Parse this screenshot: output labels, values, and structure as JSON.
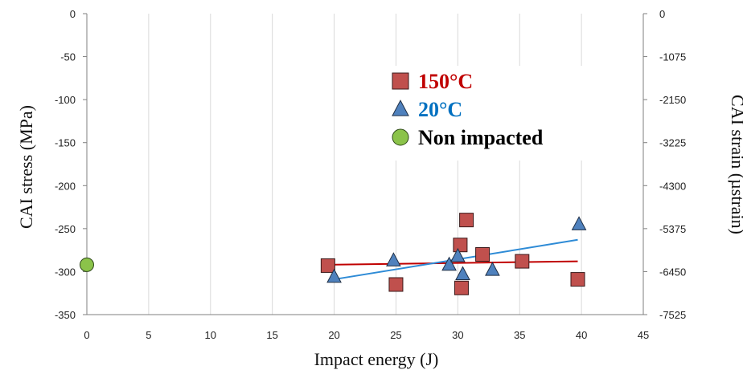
{
  "chart_data": {
    "type": "scatter",
    "xlabel": "Impact energy (J)",
    "ylabel": "CAI stress (MPa)",
    "y2label": "CAI strain (µstrain)",
    "xlim": [
      0,
      45
    ],
    "ylim": [
      -350,
      0
    ],
    "x_ticks": [
      "0",
      "5",
      "10",
      "15",
      "20",
      "25",
      "30",
      "35",
      "40",
      "45"
    ],
    "y_ticks": [
      "0",
      "-50",
      "-100",
      "-150",
      "-200",
      "-250",
      "-300",
      "-350"
    ],
    "y2_ticks": [
      "0",
      "-1075",
      "-2150",
      "-3225",
      "-4300",
      "-5375",
      "-6450",
      "-7525"
    ],
    "grid": {
      "vertical": true,
      "horizontal": false
    },
    "legend_position": "top-right",
    "series": [
      {
        "name": "150°C",
        "marker": "square",
        "color": "#c0504d",
        "label_color": "#c00000",
        "points": [
          {
            "x": 19.5,
            "y": -293
          },
          {
            "x": 25,
            "y": -315
          },
          {
            "x": 30.2,
            "y": -269
          },
          {
            "x": 30.3,
            "y": -319
          },
          {
            "x": 30.7,
            "y": -240
          },
          {
            "x": 32,
            "y": -280
          },
          {
            "x": 35.2,
            "y": -288
          },
          {
            "x": 39.7,
            "y": -309
          }
        ],
        "trend": {
          "x": [
            19.5,
            39.7
          ],
          "y": [
            -292,
            -288
          ],
          "color": "#c00000"
        }
      },
      {
        "name": "20°C",
        "marker": "triangle",
        "color": "#4f81bd",
        "label_color": "#0070c0",
        "points": [
          {
            "x": 20,
            "y": -306
          },
          {
            "x": 24.8,
            "y": -287
          },
          {
            "x": 29.3,
            "y": -292
          },
          {
            "x": 30,
            "y": -282
          },
          {
            "x": 30.4,
            "y": -303
          },
          {
            "x": 32.8,
            "y": -298
          },
          {
            "x": 39.8,
            "y": -245
          }
        ],
        "trend": {
          "x": [
            20,
            39.7
          ],
          "y": [
            -309,
            -263
          ],
          "color": "#2e8bd6"
        }
      },
      {
        "name": "Non impacted",
        "marker": "circle",
        "color": "#8bc34a",
        "label_color": "#000000",
        "points": [
          {
            "x": 0,
            "y": -292
          }
        ]
      }
    ]
  }
}
